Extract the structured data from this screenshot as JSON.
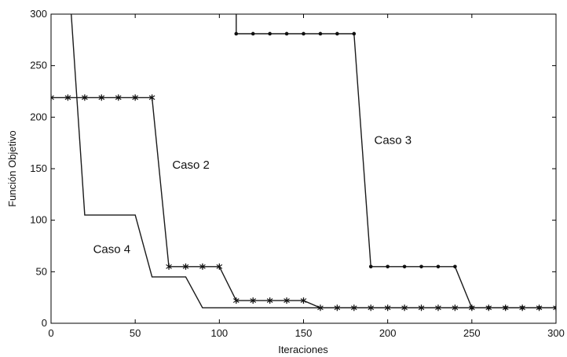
{
  "chart_data": {
    "type": "line",
    "xlabel": "Iteraciones",
    "ylabel": "Función Objetivo",
    "xlim": [
      0,
      300
    ],
    "ylim": [
      0,
      300
    ],
    "xticks": [
      0,
      50,
      100,
      150,
      200,
      250,
      300
    ],
    "yticks": [
      0,
      50,
      100,
      150,
      200,
      250,
      300
    ],
    "grid": false,
    "series": [
      {
        "name": "Caso 2",
        "marker": "star",
        "x": [
          0,
          10,
          20,
          30,
          40,
          50,
          60,
          70,
          80,
          90,
          100,
          110,
          120,
          130,
          140,
          150,
          160,
          170,
          180,
          190,
          200,
          210,
          220,
          230,
          240,
          250,
          260,
          270,
          280,
          290,
          300
        ],
        "y": [
          219,
          219,
          219,
          219,
          219,
          219,
          219,
          55,
          55,
          55,
          55,
          22,
          22,
          22,
          22,
          22,
          15,
          15,
          15,
          15,
          15,
          15,
          15,
          15,
          15,
          15,
          15,
          15,
          15,
          15,
          15
        ]
      },
      {
        "name": "Caso 3",
        "marker": "dot",
        "x": [
          110,
          110,
          120,
          130,
          140,
          150,
          160,
          170,
          180,
          190,
          200,
          210,
          220,
          230,
          240,
          250,
          260,
          270,
          280,
          290,
          300
        ],
        "y": [
          300,
          281,
          281,
          281,
          281,
          281,
          281,
          281,
          281,
          55,
          55,
          55,
          55,
          55,
          55,
          15,
          15,
          15,
          15,
          15,
          15
        ]
      },
      {
        "name": "Caso 4",
        "marker": "none",
        "x": [
          12,
          20,
          50,
          60,
          80,
          90,
          300
        ],
        "y": [
          300,
          105,
          105,
          45,
          45,
          15,
          15
        ]
      }
    ],
    "annotations": [
      {
        "text": "Caso 2",
        "x": 72,
        "y": 150
      },
      {
        "text": "Caso 3",
        "x": 192,
        "y": 174
      },
      {
        "text": "Caso 4",
        "x": 25,
        "y": 68
      }
    ]
  }
}
